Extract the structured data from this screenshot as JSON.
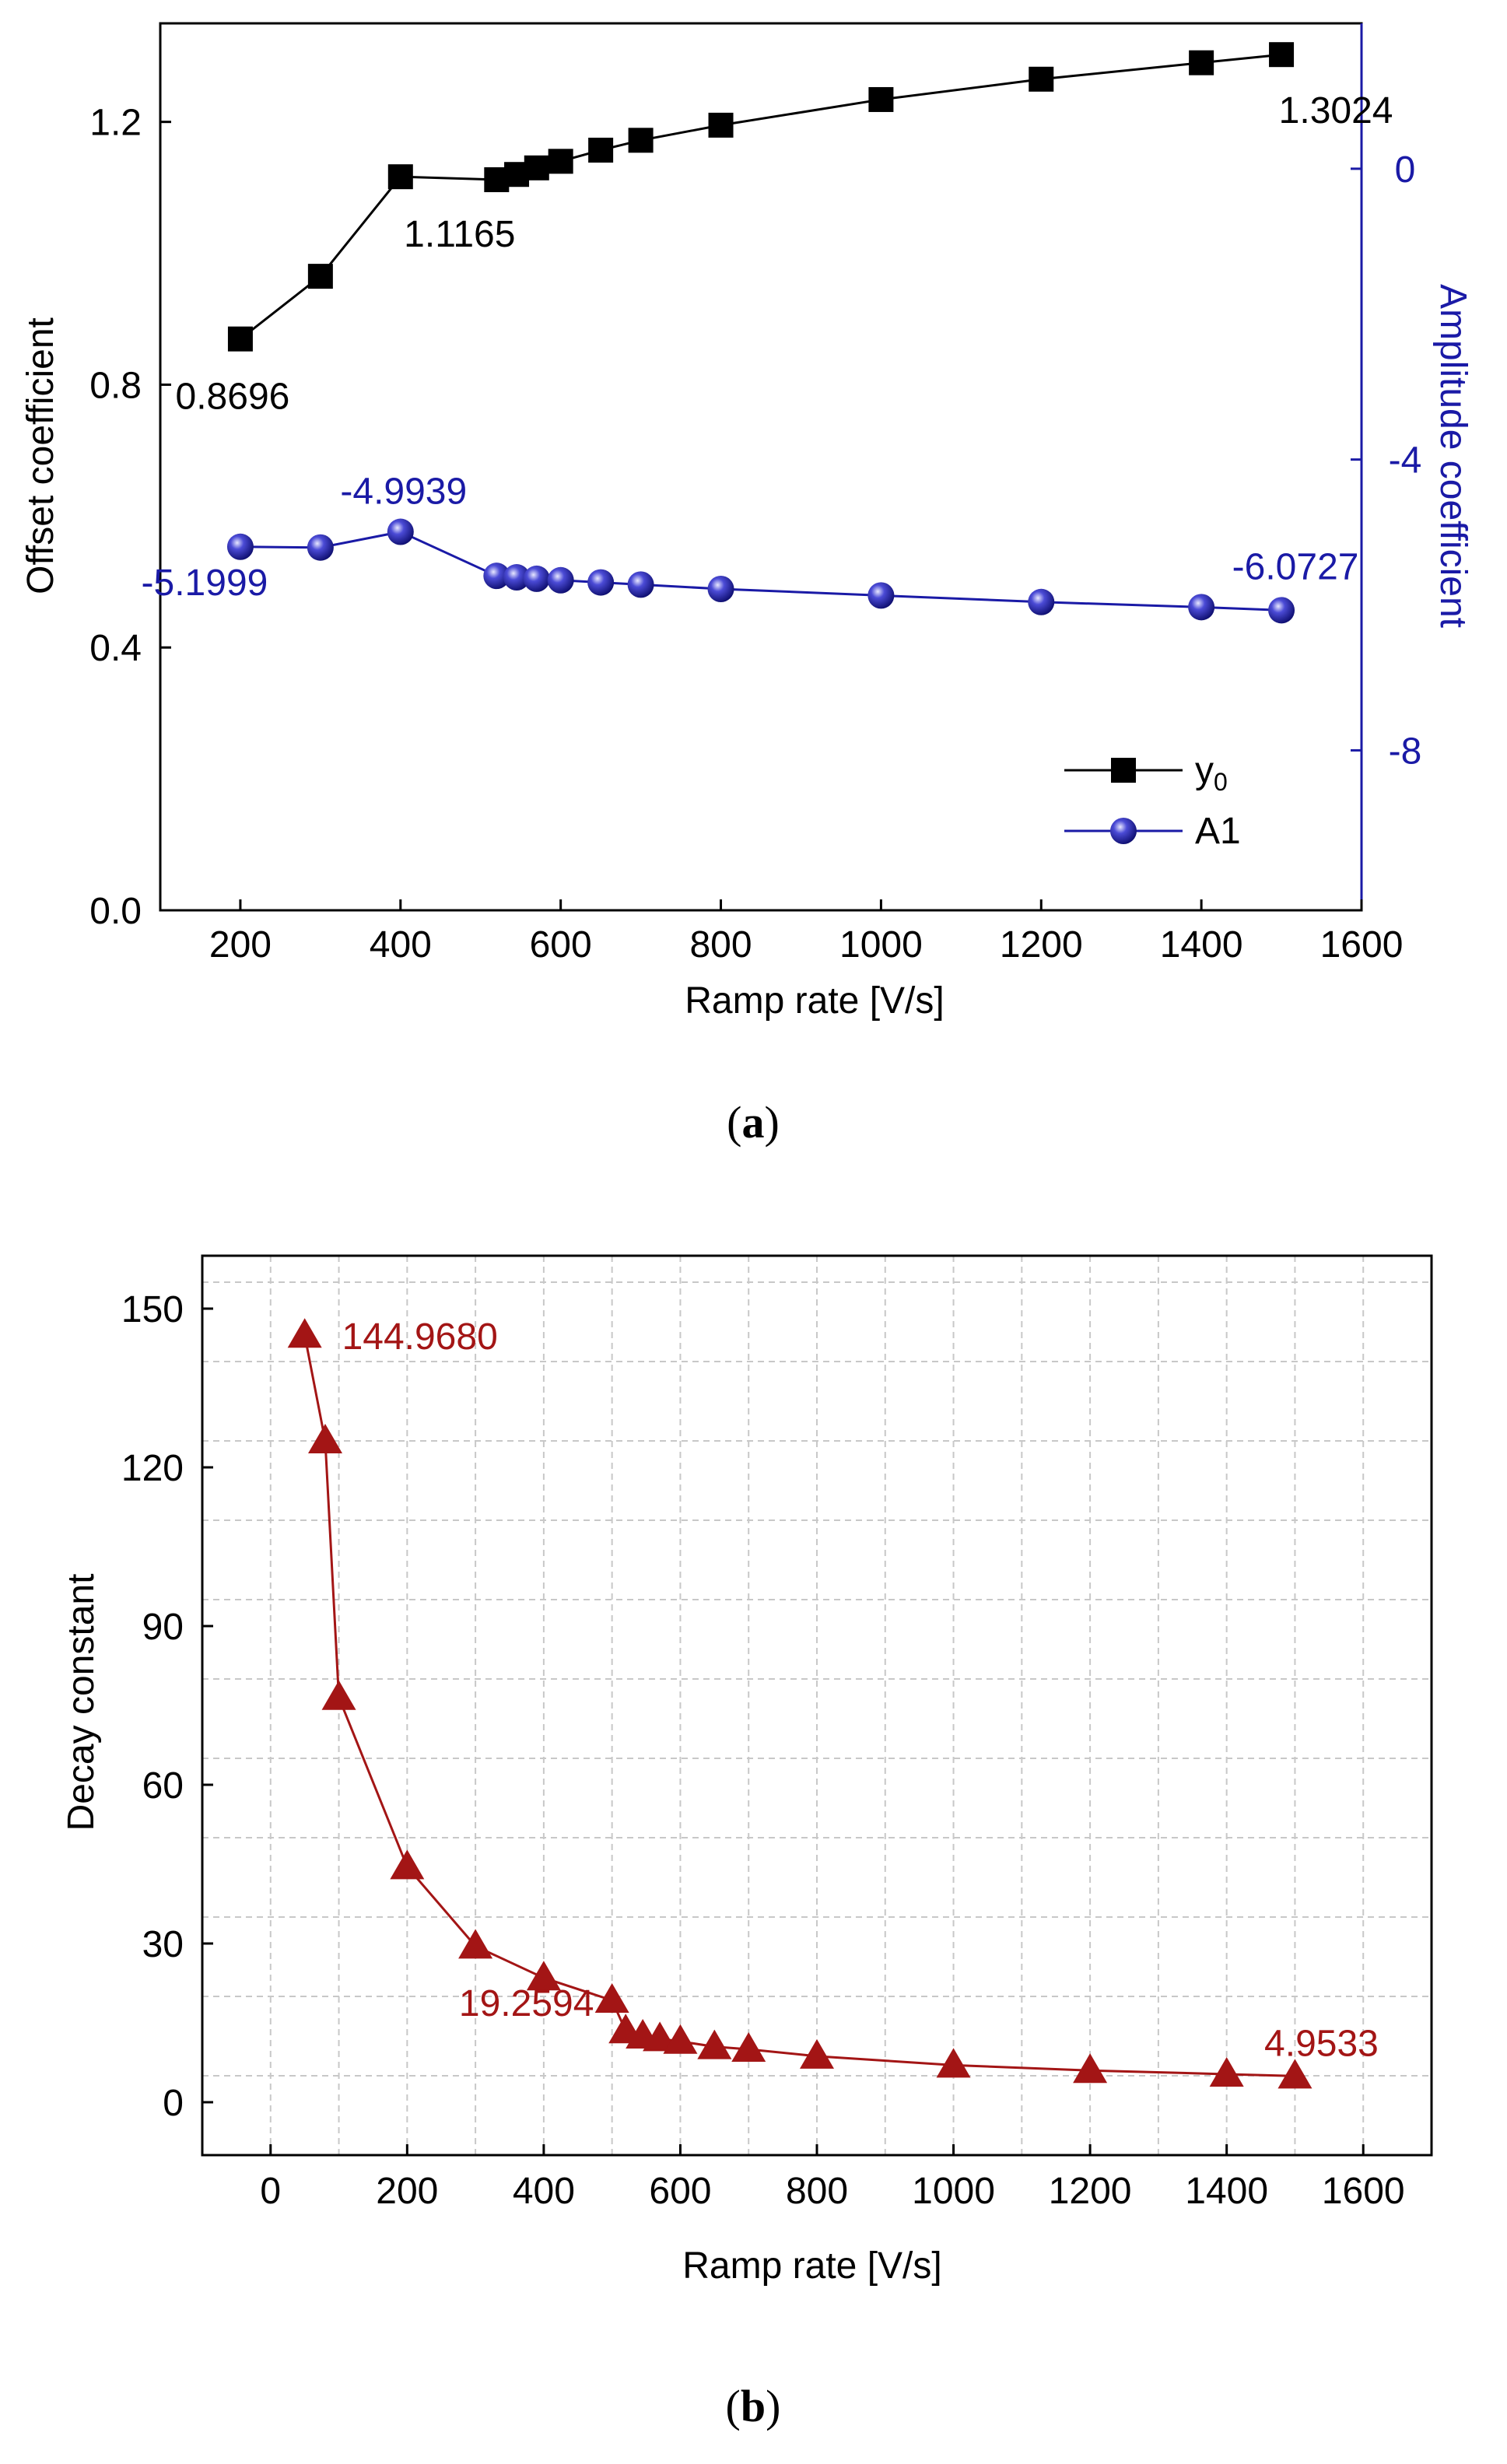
{
  "chart_data": [
    {
      "type": "line",
      "panel_label": "a",
      "xlabel": "Ramp rate [V/s]",
      "ylabel": "Offset coefficient",
      "y2label": "Amplitude coefficient",
      "xlim": [
        100,
        1600
      ],
      "ylim": [
        0.0,
        1.35
      ],
      "y2lim": [
        -10.2,
        2.0
      ],
      "xticks": [
        "200",
        "400",
        "600",
        "800",
        "1000",
        "1200",
        "1400",
        "1600"
      ],
      "xtick_values": [
        200,
        400,
        600,
        800,
        1000,
        1200,
        1400,
        1600
      ],
      "yticks": [
        "0.0",
        "0.4",
        "0.8",
        "1.2"
      ],
      "ytick_values": [
        0.0,
        0.4,
        0.8,
        1.2
      ],
      "y2ticks": [
        "0",
        "-4",
        "-8"
      ],
      "y2tick_values": [
        0,
        -4,
        -8
      ],
      "grid": false,
      "legend_position": "bottom-right",
      "series": [
        {
          "name": "y0",
          "legend_main": "y",
          "legend_sub": "0",
          "axis": "left",
          "marker": "square",
          "color": "#000000",
          "x": [
            200,
            300,
            400,
            520,
            545,
            570,
            600,
            650,
            700,
            800,
            1000,
            1200,
            1400,
            1500
          ],
          "y": [
            0.8696,
            0.965,
            1.1165,
            1.112,
            1.12,
            1.13,
            1.14,
            1.157,
            1.172,
            1.195,
            1.234,
            1.265,
            1.29,
            1.3024
          ]
        },
        {
          "name": "A1",
          "axis": "right",
          "marker": "sphere",
          "color": "#1a1aa6",
          "x": [
            200,
            300,
            400,
            520,
            545,
            570,
            600,
            650,
            700,
            800,
            1000,
            1200,
            1400,
            1500
          ],
          "y": [
            -5.1999,
            -5.21,
            -4.9939,
            -5.6,
            -5.62,
            -5.64,
            -5.66,
            -5.69,
            -5.72,
            -5.78,
            -5.87,
            -5.96,
            -6.03,
            -6.0727
          ]
        }
      ],
      "annotations": [
        {
          "text": "0.8696",
          "series": 0,
          "point": 0
        },
        {
          "text": "1.1165",
          "series": 0,
          "point": 2
        },
        {
          "text": "1.3024",
          "series": 0,
          "point": 13
        },
        {
          "text": "-5.1999",
          "series": 1,
          "point": 0
        },
        {
          "text": "-4.9939",
          "series": 1,
          "point": 2
        },
        {
          "text": "-6.0727",
          "series": 1,
          "point": 13
        }
      ]
    },
    {
      "type": "line",
      "panel_label": "b",
      "xlabel": "Ramp rate [V/s]",
      "ylabel": "Decay constant",
      "xlim": [
        -100,
        1700
      ],
      "ylim": [
        -10,
        160
      ],
      "xticks": [
        "0",
        "200",
        "400",
        "600",
        "800",
        "1000",
        "1200",
        "1400",
        "1600"
      ],
      "xtick_values": [
        0,
        200,
        400,
        600,
        800,
        1000,
        1200,
        1400,
        1600
      ],
      "yticks": [
        "0",
        "30",
        "60",
        "90",
        "120",
        "150"
      ],
      "ytick_values": [
        0,
        30,
        60,
        90,
        120,
        150
      ],
      "grid": true,
      "series": [
        {
          "name": "Decay constant",
          "marker": "triangle",
          "color": "#a31515",
          "x": [
            50,
            80,
            100,
            200,
            300,
            400,
            500,
            520,
            545,
            570,
            600,
            650,
            700,
            800,
            1000,
            1200,
            1400,
            1500
          ],
          "y": [
            144.968,
            125,
            76.5,
            44.5,
            29.5,
            23.5,
            19.2594,
            13.5,
            12.5,
            12,
            11.5,
            10.5,
            10,
            8.7,
            7,
            6,
            5.3,
            4.9533
          ]
        }
      ],
      "annotations": [
        {
          "text": "144.9680",
          "series": 0,
          "point": 0
        },
        {
          "text": "19.2594",
          "series": 0,
          "point": 6
        },
        {
          "text": "4.9533",
          "series": 0,
          "point": 17
        }
      ]
    }
  ]
}
